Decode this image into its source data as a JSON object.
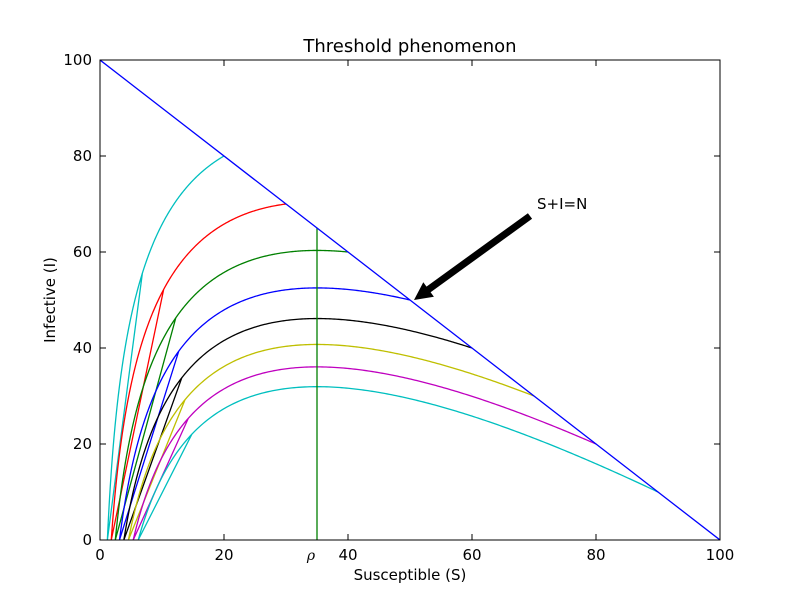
{
  "chart_data": {
    "type": "line",
    "title": "Threshold phenomenon",
    "xlabel": "Susceptible (S)",
    "ylabel": "Infective (I)",
    "xlim": [
      0,
      100
    ],
    "ylim": [
      0,
      100
    ],
    "xticks": [
      0,
      20,
      40,
      60,
      80,
      100
    ],
    "yticks": [
      0,
      20,
      40,
      60,
      80,
      100
    ],
    "grid": false,
    "model": "SIR phase-plane trajectories",
    "rho": 35,
    "rho_label": "ρ",
    "boundary": {
      "name": "S+I=N",
      "x": [
        0,
        100
      ],
      "y": [
        100,
        0
      ],
      "color": "#0000ff"
    },
    "threshold_line": {
      "x": 35,
      "y": [
        0,
        65
      ],
      "color": "#008000"
    },
    "series": [
      {
        "s0": 20,
        "i0": 80,
        "color": "#00bfbf"
      },
      {
        "s0": 30,
        "i0": 70,
        "color": "#ff0000"
      },
      {
        "s0": 40,
        "i0": 60,
        "color": "#008000"
      },
      {
        "s0": 50,
        "i0": 50,
        "color": "#0000ff"
      },
      {
        "s0": 60,
        "i0": 40,
        "color": "#000000"
      },
      {
        "s0": 70,
        "i0": 30,
        "color": "#bfbf00"
      },
      {
        "s0": 80,
        "i0": 20,
        "color": "#bf00bf"
      },
      {
        "s0": 90,
        "i0": 10,
        "color": "#00bfbf"
      }
    ],
    "annotation": {
      "text": "S+I=N",
      "xy": [
        50,
        50
      ],
      "xytext": [
        70,
        70
      ]
    }
  }
}
